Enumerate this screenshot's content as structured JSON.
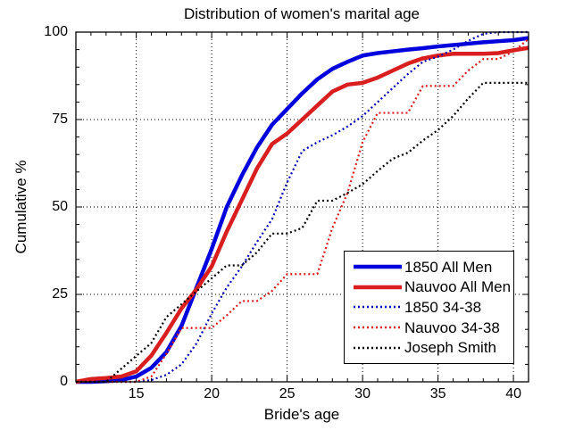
{
  "chart_data": {
    "type": "line",
    "title": "Distribution of women's marital age",
    "xlabel": "Bride's age",
    "ylabel": "Cumulative %",
    "xlim": [
      11,
      41
    ],
    "ylim": [
      0,
      100
    ],
    "x_ticks": [
      15,
      20,
      25,
      30,
      35,
      40
    ],
    "y_ticks": [
      0,
      25,
      50,
      75,
      100
    ],
    "grid": true,
    "grid_style": "dotted",
    "legend_position": "lower-right-inside",
    "x": [
      11,
      12,
      13,
      14,
      15,
      16,
      17,
      18,
      19,
      20,
      21,
      22,
      23,
      24,
      25,
      26,
      27,
      28,
      29,
      30,
      31,
      32,
      33,
      34,
      35,
      36,
      37,
      38,
      39,
      40,
      41
    ],
    "series": [
      {
        "name": "1850 All Men",
        "color": "#0000dd",
        "style": "solid",
        "width": 4.5,
        "values": [
          0,
          0,
          0.2,
          0.5,
          1.5,
          4,
          8.5,
          16,
          27,
          38,
          50,
          59,
          67,
          73.5,
          78,
          82.5,
          86.5,
          89.5,
          91.5,
          93.3,
          94,
          94.5,
          95,
          95.4,
          95.9,
          96.3,
          96.7,
          97.1,
          97.4,
          97.7,
          98.3
        ]
      },
      {
        "name": "Nauvoo All Men",
        "color": "#d81e1e",
        "style": "solid",
        "width": 4.5,
        "values": [
          0,
          0.8,
          1.1,
          1.5,
          3,
          7.5,
          14,
          21,
          26.5,
          33,
          43,
          52,
          61,
          68,
          71,
          75,
          79,
          83,
          85,
          85.5,
          87,
          89,
          91,
          92.5,
          93.3,
          93.8,
          93.8,
          93.8,
          94,
          94.8,
          95.5
        ]
      },
      {
        "name": "1850 34-38",
        "color": "#0000b4",
        "style": "dotted",
        "width": 2.2,
        "values": [
          0,
          0,
          0,
          0,
          0,
          0.5,
          2,
          5,
          11,
          19.5,
          27,
          33,
          40,
          46.5,
          57,
          66,
          68.5,
          70.5,
          73,
          76,
          80,
          84,
          88,
          91.5,
          93,
          95,
          97.5,
          99.5,
          100,
          100,
          100
        ]
      },
      {
        "name": "Nauvoo 34-38",
        "color": "#d81e1e",
        "style": "dotted",
        "width": 2.2,
        "values": [
          0,
          0,
          0,
          0,
          0,
          1.5,
          8,
          15.4,
          15.4,
          15.4,
          19,
          23.1,
          23.1,
          26,
          30.8,
          30.8,
          30.8,
          44,
          54,
          68.5,
          76.9,
          76.9,
          76.9,
          84.6,
          84.6,
          84.6,
          89,
          92.3,
          92.3,
          94.5,
          98
        ]
      },
      {
        "name": "Joseph Smith",
        "color": "#000000",
        "style": "dotted",
        "width": 2.2,
        "values": [
          0,
          0,
          0,
          3.7,
          7.4,
          11.1,
          18.5,
          22.2,
          25.9,
          29.6,
          33.3,
          33.3,
          37,
          42.4,
          42.4,
          44,
          51.8,
          51.8,
          54,
          56.5,
          60.3,
          63.8,
          65.5,
          69,
          72,
          76,
          81,
          85.5,
          85.5,
          85.5,
          85.5
        ]
      }
    ],
    "colors": {
      "axis": "#000000",
      "grid": "#000000",
      "background": "#ffffff",
      "solid_blue": "#0000dd",
      "solid_red": "#d81e1e",
      "dotted_blue": "#0000b4",
      "dotted_red": "#d81e1e",
      "dotted_black": "#000000"
    }
  }
}
